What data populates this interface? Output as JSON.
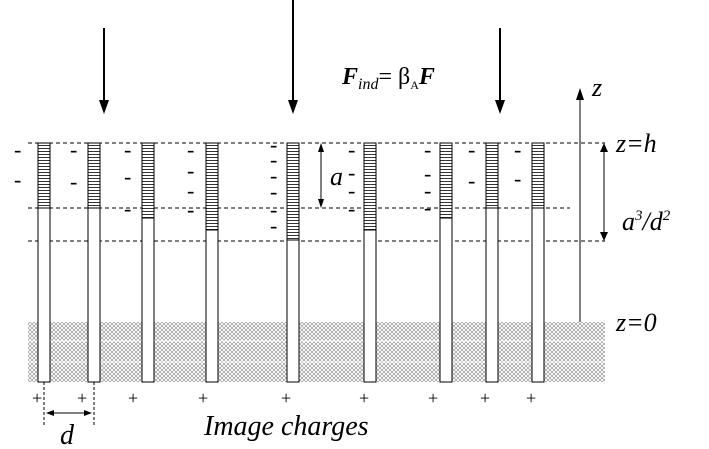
{
  "labels": {
    "force": {
      "symbol": "F",
      "subscript": "ind",
      "equals": "= β",
      "beta_subscript": "A",
      "rhs": "F"
    },
    "z_axis": "z",
    "z_top": "z=h",
    "depth": "a",
    "penetration": {
      "base": "a",
      "base_exp": "3",
      "slash": "/d",
      "denom_exp": "2"
    },
    "z_bottom": "z=0",
    "spacing": "d",
    "caption": "Image charges"
  },
  "charges": {
    "minus": "-",
    "plus": "+"
  }
}
